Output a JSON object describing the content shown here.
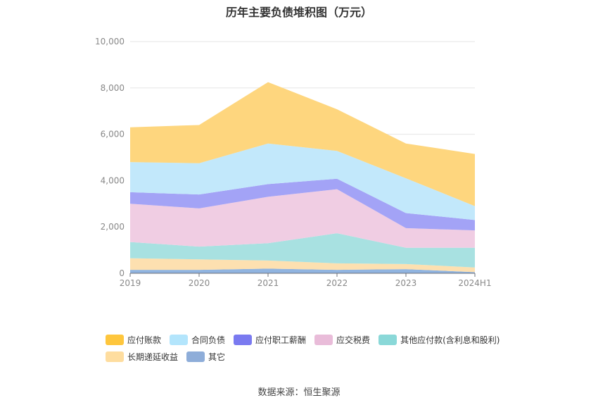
{
  "chart_data": {
    "type": "area",
    "title": "历年主要负债堆积图（万元）",
    "categories": [
      "2019",
      "2020",
      "2021",
      "2022",
      "2023",
      "2024H1"
    ],
    "ylim": [
      0,
      10000
    ],
    "yticks": [
      "0",
      "2,000",
      "4,000",
      "6,000",
      "8,000",
      "10,000"
    ],
    "stacked": true,
    "grid": true,
    "legend_position": "bottom",
    "series": [
      {
        "name": "其它",
        "color": "#90b4e0",
        "values": [
          150,
          150,
          200,
          150,
          180,
          50
        ]
      },
      {
        "name": "长期递延收益",
        "color": "#fde0b0",
        "values": [
          500,
          450,
          350,
          280,
          220,
          200
        ]
      },
      {
        "name": "其他应付款(含利息和股利)",
        "color": "#a8e1e1",
        "values": [
          700,
          550,
          750,
          1300,
          700,
          850
        ]
      },
      {
        "name": "应交税费",
        "color": "#f0cde3",
        "values": [
          1650,
          1650,
          2000,
          1900,
          850,
          750
        ]
      },
      {
        "name": "应付职工薪酬",
        "color": "#a3a3f6",
        "values": [
          500,
          600,
          550,
          450,
          650,
          450
        ]
      },
      {
        "name": "合同负债",
        "color": "#c2e8fb",
        "values": [
          1300,
          1350,
          1750,
          1200,
          1500,
          600
        ]
      },
      {
        "name": "应付账款",
        "color": "#fed67e",
        "values": [
          1500,
          1650,
          2650,
          1800,
          1500,
          2250
        ]
      }
    ]
  },
  "legend": {
    "row1": [
      {
        "label": "应付账款",
        "color": "#fec63d"
      },
      {
        "label": "合同负债",
        "color": "#b3e5fc"
      },
      {
        "label": "应付职工薪酬",
        "color": "#7a7af0"
      },
      {
        "label": "应交税费",
        "color": "#e9bcd9"
      },
      {
        "label": "其他应付款(含利息和股利)",
        "color": "#8ad8d8"
      }
    ],
    "row2": [
      {
        "label": "长期递延收益",
        "color": "#fedd9f"
      },
      {
        "label": "其它",
        "color": "#8eadd9"
      }
    ]
  },
  "source": "数据来源：恒生聚源"
}
